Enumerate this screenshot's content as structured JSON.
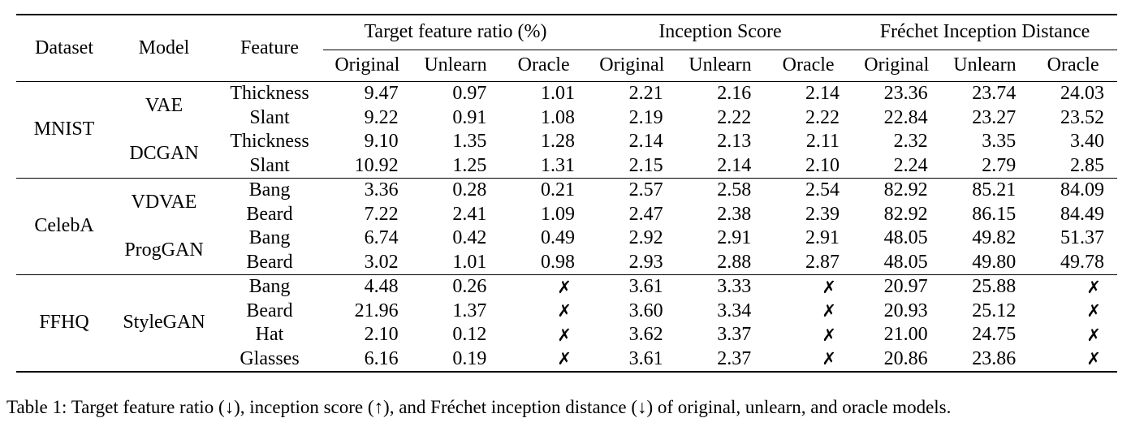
{
  "page": {
    "background": "#ffffff",
    "text_color": "#000000"
  },
  "table": {
    "headers": {
      "dataset": "Dataset",
      "model": "Model",
      "feature": "Feature"
    },
    "groups": [
      {
        "label": "Target feature ratio (%)"
      },
      {
        "label": "Inception Score"
      },
      {
        "label": "Fréchet Inception Distance"
      }
    ],
    "sub_headers": [
      "Original",
      "Unlearn",
      "Oracle"
    ],
    "missing_marker": "✗",
    "blocks": [
      {
        "dataset": "MNIST",
        "models": [
          {
            "name": "VAE",
            "rows": [
              {
                "feature": "Thickness",
                "values": [
                  "9.47",
                  "0.97",
                  "1.01",
                  "2.21",
                  "2.16",
                  "2.14",
                  "23.36",
                  "23.74",
                  "24.03"
                ]
              },
              {
                "feature": "Slant",
                "values": [
                  "9.22",
                  "0.91",
                  "1.08",
                  "2.19",
                  "2.22",
                  "2.22",
                  "22.84",
                  "23.27",
                  "23.52"
                ]
              }
            ]
          },
          {
            "name": "DCGAN",
            "rows": [
              {
                "feature": "Thickness",
                "values": [
                  "9.10",
                  "1.35",
                  "1.28",
                  "2.14",
                  "2.13",
                  "2.11",
                  "2.32",
                  "3.35",
                  "3.40"
                ]
              },
              {
                "feature": "Slant",
                "values": [
                  "10.92",
                  "1.25",
                  "1.31",
                  "2.15",
                  "2.14",
                  "2.10",
                  "2.24",
                  "2.79",
                  "2.85"
                ]
              }
            ]
          }
        ]
      },
      {
        "dataset": "CelebA",
        "models": [
          {
            "name": "VDVAE",
            "rows": [
              {
                "feature": "Bang",
                "values": [
                  "3.36",
                  "0.28",
                  "0.21",
                  "2.57",
                  "2.58",
                  "2.54",
                  "82.92",
                  "85.21",
                  "84.09"
                ]
              },
              {
                "feature": "Beard",
                "values": [
                  "7.22",
                  "2.41",
                  "1.09",
                  "2.47",
                  "2.38",
                  "2.39",
                  "82.92",
                  "86.15",
                  "84.49"
                ]
              }
            ]
          },
          {
            "name": "ProgGAN",
            "rows": [
              {
                "feature": "Bang",
                "values": [
                  "6.74",
                  "0.42",
                  "0.49",
                  "2.92",
                  "2.91",
                  "2.91",
                  "48.05",
                  "49.82",
                  "51.37"
                ]
              },
              {
                "feature": "Beard",
                "values": [
                  "3.02",
                  "1.01",
                  "0.98",
                  "2.93",
                  "2.88",
                  "2.87",
                  "48.05",
                  "49.80",
                  "49.78"
                ]
              }
            ]
          }
        ]
      },
      {
        "dataset": "FFHQ",
        "models": [
          {
            "name": "StyleGAN",
            "rows": [
              {
                "feature": "Bang",
                "values": [
                  "4.48",
                  "0.26",
                  "✗",
                  "3.61",
                  "3.33",
                  "✗",
                  "20.97",
                  "25.88",
                  "✗"
                ]
              },
              {
                "feature": "Beard",
                "values": [
                  "21.96",
                  "1.37",
                  "✗",
                  "3.60",
                  "3.34",
                  "✗",
                  "20.93",
                  "25.12",
                  "✗"
                ]
              },
              {
                "feature": "Hat",
                "values": [
                  "2.10",
                  "0.12",
                  "✗",
                  "3.62",
                  "3.37",
                  "✗",
                  "21.00",
                  "24.75",
                  "✗"
                ]
              },
              {
                "feature": "Glasses",
                "values": [
                  "6.16",
                  "0.19",
                  "✗",
                  "3.61",
                  "2.37",
                  "✗",
                  "20.86",
                  "23.86",
                  "✗"
                ]
              }
            ]
          }
        ]
      }
    ]
  },
  "caption": "Table 1: Target feature ratio (↓), inception score (↑), and Fréchet inception distance (↓) of original, unlearn, and oracle models."
}
